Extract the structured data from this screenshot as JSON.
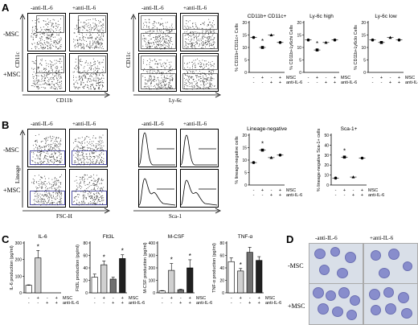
{
  "panels": {
    "A": {
      "letter": "A",
      "flow_cols": [
        "-anti-IL-6",
        "+anti-IL-6"
      ],
      "rows": [
        "-MSC",
        "+MSC"
      ],
      "flow_x1": "CD11b",
      "flow_y1": "CD11c",
      "flow_x2": "Ly-6c",
      "flow_y2": "CD11c",
      "charts": [
        {
          "title": "CD11b+ CD11c+",
          "ylabel": "% CD11b+CD11c+ Cells"
        },
        {
          "title": "Ly-6c high",
          "ylabel": "% CD11b+Ly6chi Cells"
        },
        {
          "title": "Ly-6c low",
          "ylabel": "% CD11b+Ly6clo Cells"
        }
      ]
    },
    "B": {
      "letter": "B",
      "flow_cols": [
        "-anti-IL-6",
        "+anti-IL-6"
      ],
      "hist_cols": [
        "-anti-IL-6",
        "+anti-IL-6"
      ],
      "rows": [
        "-MSC",
        "+MSC"
      ],
      "flow_x": "FSC-H",
      "flow_y": "Lineage",
      "hist_x": "Sca-1",
      "charts": [
        {
          "title": "Lineage-negative",
          "ylabel": "% lineage-negative cells"
        },
        {
          "title": "Sca-1+",
          "ylabel": "% lineage-negative Sca-1+ cells"
        }
      ]
    },
    "C": {
      "letter": "C",
      "charts": [
        {
          "title": "IL-6",
          "ylabel": "IL-6 production (pg/ml)"
        },
        {
          "title": "Flt3L",
          "ylabel": "Flt3L production (pg/ml)"
        },
        {
          "title": "M-CSF",
          "ylabel": "M-CSF production (pg/ml)"
        },
        {
          "title": "TNF-α",
          "ylabel": "TNF-α production (pg/ml)"
        }
      ]
    },
    "D": {
      "letter": "D",
      "cols": [
        "-anti-IL-6",
        "+anti-IL-6"
      ],
      "rows": [
        "-MSC",
        "+MSC"
      ]
    }
  },
  "x_legend": {
    "msc_row": [
      "-",
      "+",
      "-",
      "+"
    ],
    "il6_row": [
      "-",
      "-",
      "+",
      "+"
    ],
    "msc_label": "MSC",
    "il6_label": "anti-IL-6"
  },
  "chart_data": [
    {
      "type": "scatter",
      "title": "CD11b+ CD11c+",
      "ylabel": "% CD11b+CD11c+ Cells",
      "categories": [
        "-/-",
        "+/-",
        "-/+",
        "+/+"
      ],
      "values": [
        14,
        10,
        15,
        12
      ],
      "ylim": [
        0,
        20
      ],
      "ticks": [
        "0",
        "5",
        "10",
        "15",
        "20"
      ],
      "significant": [
        false,
        true,
        false,
        false
      ]
    },
    {
      "type": "scatter",
      "title": "Ly-6c high",
      "ylabel": "% CD11b+Ly6chi Cells",
      "categories": [
        "-/-",
        "+/-",
        "-/+",
        "+/+"
      ],
      "values": [
        13,
        9,
        12,
        13
      ],
      "ylim": [
        0,
        20
      ],
      "ticks": [
        "0",
        "5",
        "10",
        "15",
        "20"
      ],
      "significant": [
        false,
        true,
        false,
        false
      ]
    },
    {
      "type": "scatter",
      "title": "Ly-6c low",
      "ylabel": "% CD11b+Ly6clo Cells",
      "categories": [
        "-/-",
        "+/-",
        "-/+",
        "+/+"
      ],
      "values": [
        13,
        12,
        14,
        13
      ],
      "ylim": [
        0,
        20
      ],
      "ticks": [
        "0",
        "5",
        "10",
        "15",
        "20"
      ],
      "significant": [
        false,
        false,
        false,
        false
      ]
    },
    {
      "type": "scatter",
      "title": "Lineage-negative",
      "ylabel": "% lineage-negative cells",
      "categories": [
        "-/-",
        "+/-",
        "-/+",
        "+/+"
      ],
      "values": [
        9,
        14,
        11,
        12
      ],
      "ylim": [
        0,
        20
      ],
      "ticks": [
        "0",
        "5",
        "10",
        "15",
        "20"
      ],
      "significant": [
        false,
        true,
        false,
        false
      ]
    },
    {
      "type": "scatter",
      "title": "Sca-1+",
      "ylabel": "% lineage-negative Sca-1+ cells",
      "categories": [
        "-/-",
        "+/-",
        "-/+",
        "+/+"
      ],
      "values": [
        7,
        28,
        8,
        27
      ],
      "ylim": [
        0,
        50
      ],
      "ticks": [
        "0",
        "10",
        "20",
        "30",
        "40",
        "50"
      ],
      "significant": [
        false,
        true,
        false,
        false
      ]
    },
    {
      "type": "bar",
      "title": "IL-6",
      "ylabel": "IL-6 production (pg/ml)",
      "categories": [
        "-/-",
        "+/-",
        "-/+",
        "+/+"
      ],
      "values": [
        45,
        210,
        0,
        0
      ],
      "errors": [
        3,
        45,
        0,
        0
      ],
      "ylim": [
        0,
        300
      ],
      "ticks": [
        "0",
        "100",
        "200",
        "300"
      ],
      "significant": [
        false,
        true,
        false,
        false
      ],
      "colors": [
        "#ffffff",
        "#d0d0d0",
        "#707070",
        "#202020"
      ]
    },
    {
      "type": "bar",
      "title": "Flt3L",
      "ylabel": "Flt3L production (pg/ml)",
      "categories": [
        "-/-",
        "+/-",
        "-/+",
        "+/+"
      ],
      "values": [
        25,
        45,
        22,
        55
      ],
      "errors": [
        5,
        6,
        3,
        6
      ],
      "ylim": [
        0,
        80
      ],
      "ticks": [
        "0",
        "20",
        "40",
        "60",
        "80"
      ],
      "significant": [
        false,
        true,
        false,
        true
      ],
      "colors": [
        "#ffffff",
        "#d0d0d0",
        "#707070",
        "#202020"
      ]
    },
    {
      "type": "bar",
      "title": "M-CSF",
      "ylabel": "M-CSF production (pg/ml)",
      "categories": [
        "-/-",
        "+/-",
        "-/+",
        "+/+"
      ],
      "values": [
        15,
        180,
        25,
        200
      ],
      "errors": [
        3,
        55,
        4,
        65
      ],
      "ylim": [
        0,
        400
      ],
      "ticks": [
        "0",
        "100",
        "200",
        "300",
        "400"
      ],
      "significant": [
        false,
        true,
        false,
        true
      ],
      "colors": [
        "#ffffff",
        "#d0d0d0",
        "#707070",
        "#202020"
      ]
    },
    {
      "type": "bar",
      "title": "TNF-α",
      "ylabel": "TNF-α production (pg/ml)",
      "categories": [
        "-/-",
        "+/-",
        "-/+",
        "+/+"
      ],
      "values": [
        50,
        35,
        65,
        52
      ],
      "errors": [
        6,
        4,
        8,
        6
      ],
      "ylim": [
        0,
        80
      ],
      "ticks": [
        "0",
        "20",
        "40",
        "60",
        "80"
      ],
      "significant": [
        false,
        true,
        false,
        false
      ],
      "colors": [
        "#ffffff",
        "#d0d0d0",
        "#707070",
        "#202020"
      ]
    }
  ],
  "significance_marker": "*"
}
